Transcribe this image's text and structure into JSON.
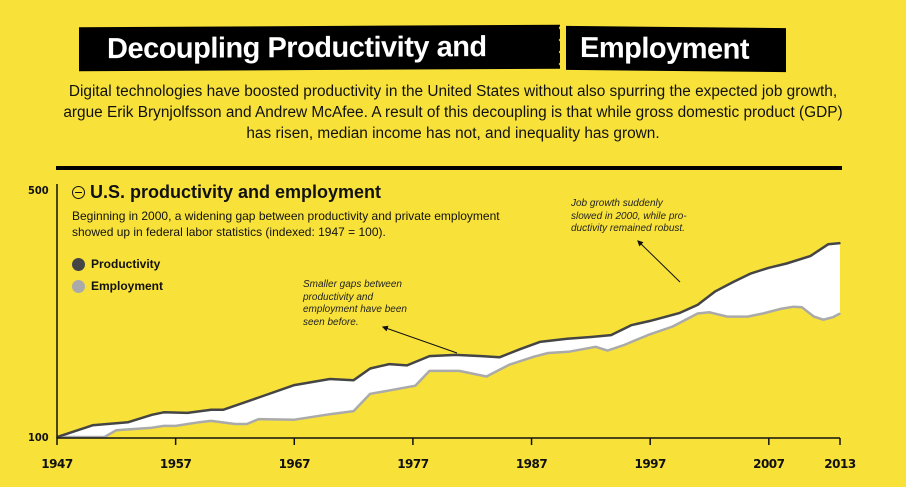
{
  "header": {
    "title_part1": "Decoupling Productivity and",
    "title_part2": "Employment",
    "intro": "Digital technologies have boosted productivity in the United States without also spurring the expected job growth, argue Erik Brynjolfsson and Andrew McAfee. A result of this decoupling is that while gross domestic product (GDP) has risen, median income has not, and inequality has grown."
  },
  "colors": {
    "background": "#f8e23a",
    "productivity": "#454545",
    "employment": "#aaaaaa",
    "gap_fill": "#ffffff"
  },
  "chart_data": {
    "type": "area",
    "title": "U.S. productivity and employment",
    "subtitle": "Beginning in 2000, a widening gap between productivity and private employment showed up in federal labor statistics (indexed: 1947 = 100).",
    "xlabel": "",
    "ylabel": "",
    "xlim": [
      1947,
      2013
    ],
    "ylim": [
      100,
      500
    ],
    "x_ticks": [
      "1947",
      "1957",
      "1967",
      "1977",
      "1987",
      "1997",
      "2007",
      "2013"
    ],
    "x_tick_values": [
      1947,
      1957,
      1967,
      1977,
      1987,
      1997,
      2007,
      2013
    ],
    "y_ticks": [
      "100",
      "500"
    ],
    "y_tick_values": [
      100,
      500
    ],
    "grid": false,
    "legend": {
      "placement": "top-left",
      "entries": [
        "Productivity",
        "Employment"
      ]
    },
    "series": [
      {
        "name": "Productivity",
        "points": [
          [
            1947,
            100
          ],
          [
            1950,
            119
          ],
          [
            1953,
            124
          ],
          [
            1955,
            136
          ],
          [
            1956,
            140
          ],
          [
            1958,
            139
          ],
          [
            1960,
            144
          ],
          [
            1961,
            144
          ],
          [
            1964,
            164
          ],
          [
            1967,
            184
          ],
          [
            1970,
            194
          ],
          [
            1972,
            192
          ],
          [
            1973.4,
            211
          ],
          [
            1975,
            218
          ],
          [
            1976.5,
            216
          ],
          [
            1978.4,
            231
          ],
          [
            1980.6,
            233
          ],
          [
            1982.8,
            231
          ],
          [
            1984.3,
            229
          ],
          [
            1986,
            242
          ],
          [
            1987.7,
            254
          ],
          [
            1990,
            259
          ],
          [
            1992,
            262
          ],
          [
            1993.7,
            265
          ],
          [
            1995.4,
            281
          ],
          [
            1997,
            288
          ],
          [
            1999.5,
            301
          ],
          [
            2001,
            314
          ],
          [
            2002.5,
            336
          ],
          [
            2004,
            351
          ],
          [
            2005.5,
            365
          ],
          [
            2007,
            374
          ],
          [
            2008.5,
            381
          ],
          [
            2010.5,
            393
          ],
          [
            2012,
            412
          ],
          [
            2013,
            414
          ]
        ]
      },
      {
        "name": "Employment",
        "points": [
          [
            1947,
            100
          ],
          [
            1951,
            100
          ],
          [
            1952,
            111
          ],
          [
            1955,
            115
          ],
          [
            1956,
            118
          ],
          [
            1957,
            118
          ],
          [
            1959,
            124
          ],
          [
            1960,
            126
          ],
          [
            1962,
            121
          ],
          [
            1963,
            121
          ],
          [
            1964,
            129
          ],
          [
            1967,
            128
          ],
          [
            1970,
            137
          ],
          [
            1972,
            142
          ],
          [
            1973.4,
            170
          ],
          [
            1974.9,
            175
          ],
          [
            1977.2,
            183
          ],
          [
            1978.4,
            207
          ],
          [
            1980.9,
            207
          ],
          [
            1983.2,
            198
          ],
          [
            1985.1,
            217
          ],
          [
            1987.2,
            230
          ],
          [
            1988.4,
            236
          ],
          [
            1990.1,
            238
          ],
          [
            1992.4,
            246
          ],
          [
            1993.4,
            240
          ],
          [
            1994.8,
            249
          ],
          [
            1996.8,
            265
          ],
          [
            1998.9,
            279
          ],
          [
            2001,
            300
          ],
          [
            2002,
            302
          ],
          [
            2003.5,
            295
          ],
          [
            2005.2,
            295
          ],
          [
            2006.5,
            300
          ],
          [
            2008.1,
            308
          ],
          [
            2009.1,
            311
          ],
          [
            2009.8,
            310
          ],
          [
            2010.8,
            295
          ],
          [
            2011.6,
            290
          ],
          [
            2012.4,
            294
          ],
          [
            2013,
            300
          ]
        ]
      }
    ],
    "annotations": [
      {
        "text": "Smaller gaps between productivity and employment have been seen before.",
        "target_year": 1983
      },
      {
        "text": "Job growth suddenly slowed in 2000, while productivity remained robust.",
        "target_year": 2000
      }
    ]
  },
  "legend": {
    "items": [
      {
        "label": "Productivity"
      },
      {
        "label": "Employment"
      }
    ]
  },
  "annotations": {
    "a1_lines": [
      "Smaller gaps between",
      "productivity and",
      "employment have been",
      "seen before."
    ],
    "a2_lines": [
      "Job growth suddenly",
      "slowed in 2000, while pro-",
      "ductivity remained robust."
    ]
  }
}
